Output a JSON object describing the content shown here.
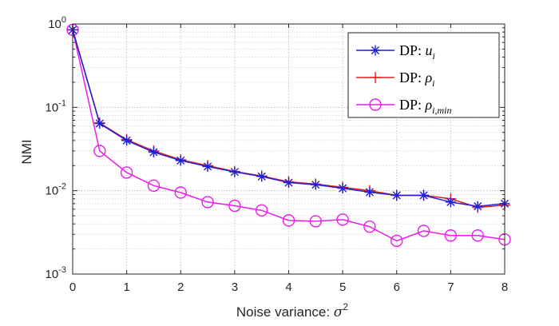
{
  "chart_data": {
    "type": "line",
    "title": "",
    "xlabel": "Noise variance: ",
    "xlabel_symbol": "σ",
    "xlabel_exponent": "2",
    "ylabel": "NMI",
    "yscale": "log",
    "xlim": [
      0,
      8
    ],
    "ylim": [
      0.001,
      1
    ],
    "x_ticks": [
      "0",
      "1",
      "2",
      "3",
      "4",
      "5",
      "6",
      "7",
      "8"
    ],
    "y_ticks": [
      {
        "base": "10",
        "exp": "0"
      },
      {
        "base": "10",
        "exp": "-1"
      },
      {
        "base": "10",
        "exp": "-2"
      },
      {
        "base": "10",
        "exp": "-3"
      }
    ],
    "grid": true,
    "legend_position": "top-right",
    "x": [
      0,
      0.5,
      1,
      1.5,
      2,
      2.5,
      3,
      3.5,
      4,
      4.5,
      5,
      5.5,
      6,
      6.5,
      7,
      7.5,
      8
    ],
    "series": [
      {
        "name": "DP: u_i",
        "legend_prefix": "DP: ",
        "legend_symbol": "u",
        "legend_subscript": "i",
        "color": "#1f1fd6",
        "marker": "asterisk",
        "values": [
          0.85,
          0.064,
          0.04,
          0.029,
          0.023,
          0.0195,
          0.0168,
          0.0148,
          0.0125,
          0.0118,
          0.0107,
          0.0096,
          0.0088,
          0.0088,
          0.0073,
          0.0065,
          0.007
        ]
      },
      {
        "name": "DP: ρ_i",
        "legend_prefix": "DP: ",
        "legend_symbol": "ρ",
        "legend_subscript": "i",
        "color": "#e8201b",
        "marker": "plus",
        "values": [
          0.85,
          0.065,
          0.041,
          0.03,
          0.0235,
          0.02,
          0.017,
          0.015,
          0.0128,
          0.012,
          0.011,
          0.01,
          0.0088,
          0.0088,
          0.008,
          0.0063,
          0.0067
        ]
      },
      {
        "name": "DP: ρ_{i,min}",
        "legend_prefix": "DP: ",
        "legend_symbol": "ρ",
        "legend_subscript": "i,min",
        "color": "#ee1aee",
        "marker": "circle",
        "values": [
          0.85,
          0.03,
          0.0165,
          0.0115,
          0.0095,
          0.0073,
          0.0066,
          0.0058,
          0.0044,
          0.0043,
          0.0045,
          0.0037,
          0.0025,
          0.0033,
          0.0029,
          0.0029,
          0.0026
        ]
      }
    ]
  }
}
